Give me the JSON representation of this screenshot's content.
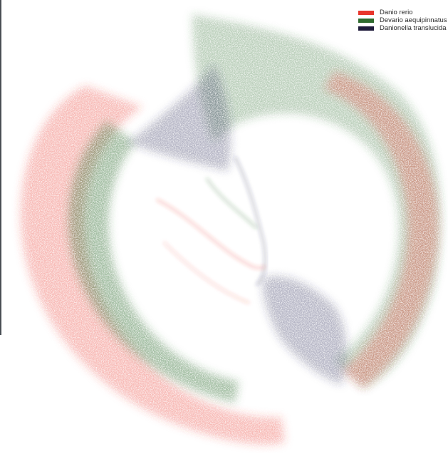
{
  "chart_data": {
    "type": "scatter",
    "title": "",
    "xlabel": "",
    "ylabel": "",
    "grid": false,
    "axes_visible": false,
    "legend_placement": "top-right",
    "series": [
      {
        "name": "Danio rerio",
        "color": "#e8362c"
      },
      {
        "name": "Devario aequipinnatus",
        "color": "#2e6b2e"
      },
      {
        "name": "Danionella translucida",
        "color": "#1e1b3a"
      }
    ]
  }
}
